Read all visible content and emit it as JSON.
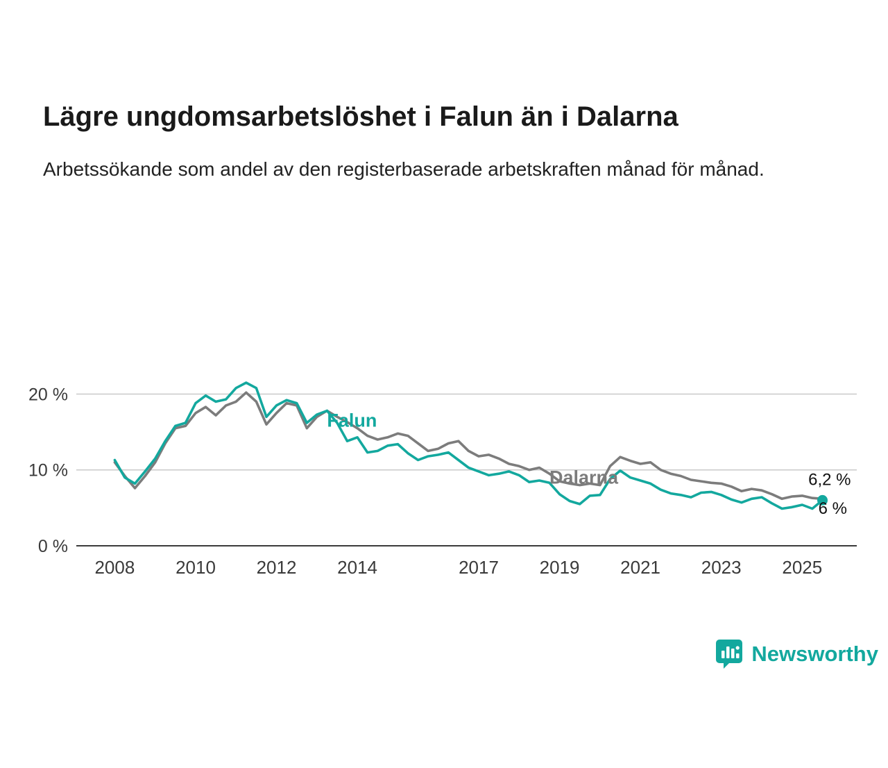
{
  "header": {
    "title": "Lägre ungdomsarbetslöshet i Falun än i Dalarna",
    "subtitle": "Arbetssökande som andel av den registerbaserade arbetskraften månad för månad."
  },
  "branding": {
    "name": "Newsworthy",
    "color": "#13A89E",
    "icon": "bar-chart-pin-icon"
  },
  "chart_data": {
    "type": "line",
    "title": "Lägre ungdomsarbetslöshet i Falun än i Dalarna",
    "subtitle": "Arbetssökande som andel av den registerbaserade arbetskraften månad för månad.",
    "unit": "%",
    "grid": "horizontal",
    "xlim": [
      2007.05,
      2026.35
    ],
    "ylim": [
      0,
      22.7
    ],
    "xticks": [
      2008,
      2010,
      2012,
      2014,
      2017,
      2019,
      2021,
      2023,
      2025
    ],
    "yticks": [
      {
        "value": 0,
        "label": "0 %"
      },
      {
        "value": 10,
        "label": "10 %"
      },
      {
        "value": 20,
        "label": "20 %"
      }
    ],
    "x": [
      2008,
      2008.25,
      2008.5,
      2008.75,
      2009,
      2009.25,
      2009.5,
      2009.75,
      2010,
      2010.25,
      2010.5,
      2010.75,
      2011,
      2011.25,
      2011.5,
      2011.75,
      2012,
      2012.25,
      2012.5,
      2012.75,
      2013,
      2013.25,
      2013.5,
      2013.75,
      2014,
      2014.25,
      2014.5,
      2014.75,
      2015,
      2015.25,
      2015.5,
      2015.75,
      2016,
      2016.25,
      2016.5,
      2016.75,
      2017,
      2017.25,
      2017.5,
      2017.75,
      2018,
      2018.25,
      2018.5,
      2018.75,
      2019,
      2019.25,
      2019.5,
      2019.75,
      2020,
      2020.25,
      2020.5,
      2020.75,
      2021,
      2021.25,
      2021.5,
      2021.75,
      2022,
      2022.25,
      2022.5,
      2022.75,
      2023,
      2023.25,
      2023.5,
      2023.75,
      2024,
      2024.25,
      2024.5,
      2024.75,
      2025,
      2025.25,
      2025.5
    ],
    "series": [
      {
        "name": "Dalarna",
        "color": "#7C7C7C",
        "end_dot": false,
        "final_value_label": "6,2 %",
        "values": [
          11.0,
          9.2,
          7.6,
          9.2,
          11.0,
          13.5,
          15.5,
          15.8,
          17.5,
          18.3,
          17.2,
          18.5,
          19.0,
          20.2,
          19.0,
          16.0,
          17.5,
          18.8,
          18.5,
          15.5,
          17.0,
          17.8,
          17.0,
          16.3,
          15.5,
          14.5,
          14.0,
          14.3,
          14.8,
          14.5,
          13.5,
          12.5,
          12.8,
          13.5,
          13.8,
          12.5,
          11.8,
          12.0,
          11.5,
          10.8,
          10.5,
          10.0,
          10.3,
          9.5,
          8.5,
          8.2,
          8.0,
          8.2,
          8.0,
          10.5,
          11.7,
          11.2,
          10.8,
          11.0,
          10.0,
          9.5,
          9.2,
          8.7,
          8.5,
          8.3,
          8.2,
          7.8,
          7.2,
          7.5,
          7.3,
          6.8,
          6.2,
          6.5,
          6.6,
          6.3,
          6.2
        ]
      },
      {
        "name": "Falun",
        "color": "#13A89E",
        "end_dot": true,
        "final_value_label": "6 %",
        "values": [
          11.3,
          9.0,
          8.2,
          9.8,
          11.5,
          13.8,
          15.8,
          16.2,
          18.8,
          19.8,
          19.0,
          19.3,
          20.8,
          21.5,
          20.8,
          17.0,
          18.5,
          19.2,
          18.8,
          16.2,
          17.3,
          17.8,
          16.2,
          13.8,
          14.3,
          12.3,
          12.5,
          13.2,
          13.4,
          12.2,
          11.3,
          11.8,
          12.0,
          12.3,
          11.3,
          10.3,
          9.8,
          9.3,
          9.5,
          9.8,
          9.3,
          8.4,
          8.6,
          8.3,
          6.8,
          5.9,
          5.5,
          6.6,
          6.7,
          8.8,
          9.9,
          9.0,
          8.6,
          8.2,
          7.4,
          6.9,
          6.7,
          6.4,
          7.0,
          7.1,
          6.7,
          6.1,
          5.7,
          6.2,
          6.4,
          5.6,
          4.9,
          5.1,
          5.4,
          4.9,
          6.0
        ]
      }
    ],
    "series_labels": [
      {
        "text": "Falun",
        "x": 2013.25,
        "y": 15.7,
        "color": "#13A89E"
      },
      {
        "text": "Dalarna",
        "x": 2018.75,
        "y": 8.2,
        "color": "#7C7C7C"
      }
    ],
    "value_labels": [
      {
        "text": "6,2 %",
        "x": 2025.15,
        "y": 8.0,
        "color": "#111111"
      },
      {
        "text": "6 %",
        "x": 2025.4,
        "y": 4.2,
        "color": "#111111"
      }
    ]
  }
}
